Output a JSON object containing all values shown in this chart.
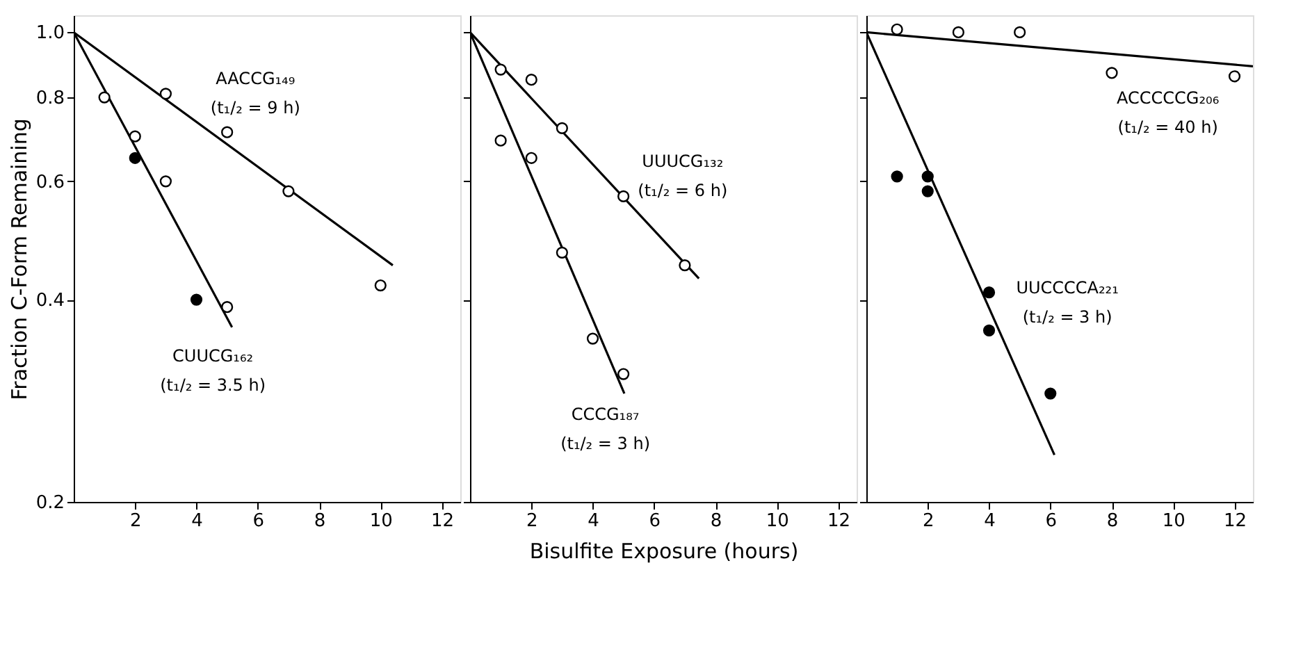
{
  "chart_data": [
    {
      "type": "scatter",
      "ylabel": "Fraction C-Form Remaining",
      "log": "y",
      "grid": false,
      "xlim": [
        0,
        12.6
      ],
      "xticks": [
        2,
        4,
        6,
        8,
        10,
        12
      ],
      "ylim": [
        0.2,
        1.06
      ],
      "yticks": [
        0.2,
        0.4,
        0.6,
        0.8,
        {
          "value": 1.0,
          "label": "1.0"
        }
      ],
      "series": [
        {
          "type": "line",
          "color": "#000000",
          "marker": "none",
          "line_style": "solid",
          "x": [
            0,
            10.4
          ],
          "values": [
            1.0,
            0.45
          ]
        },
        {
          "type": "line",
          "color": "#000000",
          "marker": "none",
          "line_style": "solid",
          "x": [
            0,
            5.16
          ],
          "values": [
            1.0,
            0.364
          ]
        },
        {
          "color": "#ffffff",
          "marker": "circle",
          "x": [
            3,
            5,
            7,
            10
          ],
          "values": [
            0.81,
            0.71,
            0.58,
            0.42
          ]
        },
        {
          "color": "#ffffff",
          "marker": "circle",
          "x": [
            1,
            2,
            3,
            5
          ],
          "values": [
            0.8,
            0.7,
            0.6,
            0.39
          ]
        },
        {
          "color": "#000000",
          "marker": "circle",
          "x": [
            2,
            4
          ],
          "values": [
            0.65,
            0.4
          ]
        }
      ],
      "annotations": [
        "AACCG₁₄₉",
        "(t₁/₂ = 9 h)",
        "CUUCG₁₆₂",
        "(t₁/₂ = 3.5 h)"
      ]
    },
    {
      "type": "scatter",
      "xlabel": "Bisulfite Exposure (hours)",
      "log": "y",
      "grid": false,
      "tick_labels": "x",
      "xlim": [
        0,
        12.6
      ],
      "xticks": [
        2,
        4,
        6,
        8,
        10,
        12
      ],
      "ylim": [
        0.2,
        1.06
      ],
      "yticks": [
        0.2,
        0.4,
        0.6,
        0.8,
        1
      ],
      "series": [
        {
          "type": "line",
          "color": "#000000",
          "marker": "none",
          "line_style": "solid",
          "x": [
            0,
            7.46
          ],
          "values": [
            1.0,
            0.43
          ]
        },
        {
          "type": "line",
          "color": "#000000",
          "marker": "none",
          "line_style": "solid",
          "x": [
            0,
            5.03
          ],
          "values": [
            1.0,
            0.29
          ]
        },
        {
          "color": "#ffffff",
          "marker": "circle",
          "x": [
            1,
            2,
            3,
            5,
            7
          ],
          "values": [
            0.88,
            0.85,
            0.72,
            0.57,
            0.45
          ]
        },
        {
          "color": "#ffffff",
          "marker": "circle",
          "x": [
            1,
            2,
            3,
            4,
            5
          ],
          "values": [
            0.69,
            0.65,
            0.47,
            0.35,
            0.31
          ]
        }
      ],
      "annotations": [
        "UUUCG₁₃₂",
        "(t₁/₂ = 6 h)",
        "CCCG₁₈₇",
        "(t₁/₂ = 3 h)"
      ]
    },
    {
      "type": "scatter",
      "log": "y",
      "grid": false,
      "tick_labels": "x",
      "xlim": [
        0,
        12.6
      ],
      "xticks": [
        2,
        4,
        6,
        8,
        10,
        12
      ],
      "ylim": [
        0.2,
        1.06
      ],
      "yticks": [
        0.2,
        0.4,
        0.6,
        0.8,
        1
      ],
      "series": [
        {
          "type": "line",
          "color": "#000000",
          "marker": "none",
          "line_style": "solid",
          "x": [
            0,
            12.6
          ],
          "values": [
            1.0,
            0.89
          ]
        },
        {
          "type": "line",
          "color": "#000000",
          "marker": "none",
          "line_style": "solid",
          "x": [
            0,
            6.13
          ],
          "values": [
            1.0,
            0.235
          ]
        },
        {
          "color": "#ffffff",
          "marker": "circle",
          "x": [
            1,
            3,
            5,
            8,
            12
          ],
          "values": [
            1.01,
            1.0,
            1.0,
            0.87,
            0.86
          ]
        },
        {
          "color": "#000000",
          "marker": "circle",
          "x": [
            1,
            2,
            2,
            4,
            4,
            6
          ],
          "values": [
            0.61,
            0.61,
            0.58,
            0.41,
            0.36,
            0.29
          ]
        }
      ],
      "annotations": [
        "ACCCCCG₂₀₆",
        "(t₁/₂ = 40 h)",
        "UUCCCCA₂₂₁",
        "(t₁/₂ = 3 h)"
      ]
    }
  ]
}
